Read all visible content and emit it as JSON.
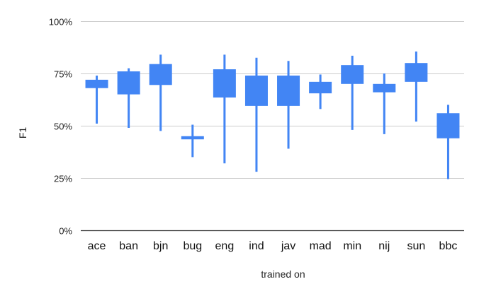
{
  "chart_data": {
    "type": "candlestick",
    "xlabel": "trained on",
    "ylabel": "F1",
    "ylim": [
      0,
      100
    ],
    "y_ticks": [
      "0%",
      "25%",
      "50%",
      "75%",
      "100%"
    ],
    "y_tick_values": [
      0,
      25,
      50,
      75,
      100
    ],
    "grid": true,
    "legend": "none",
    "colors": {
      "box": "#4285f4",
      "grid": "#cccccc",
      "axis": "#333333"
    },
    "categories": [
      "ace",
      "ban",
      "bjn",
      "bug",
      "eng",
      "ind",
      "jav",
      "mad",
      "min",
      "nij",
      "sun",
      "bbc"
    ],
    "low": [
      51.0,
      49.0,
      47.5,
      35.0,
      32.0,
      28.0,
      39.0,
      58.0,
      48.0,
      46.0,
      52.0,
      24.5
    ],
    "box_low": [
      68.0,
      65.0,
      69.5,
      43.5,
      63.5,
      59.5,
      59.5,
      65.5,
      70.0,
      66.0,
      71.0,
      44.0
    ],
    "box_high": [
      72.0,
      76.0,
      79.5,
      45.0,
      77.0,
      74.0,
      74.0,
      71.0,
      79.0,
      70.0,
      80.0,
      56.0
    ],
    "high": [
      74.0,
      77.5,
      84.0,
      50.5,
      84.0,
      82.5,
      81.0,
      74.5,
      83.5,
      75.0,
      85.5,
      60.0
    ]
  }
}
